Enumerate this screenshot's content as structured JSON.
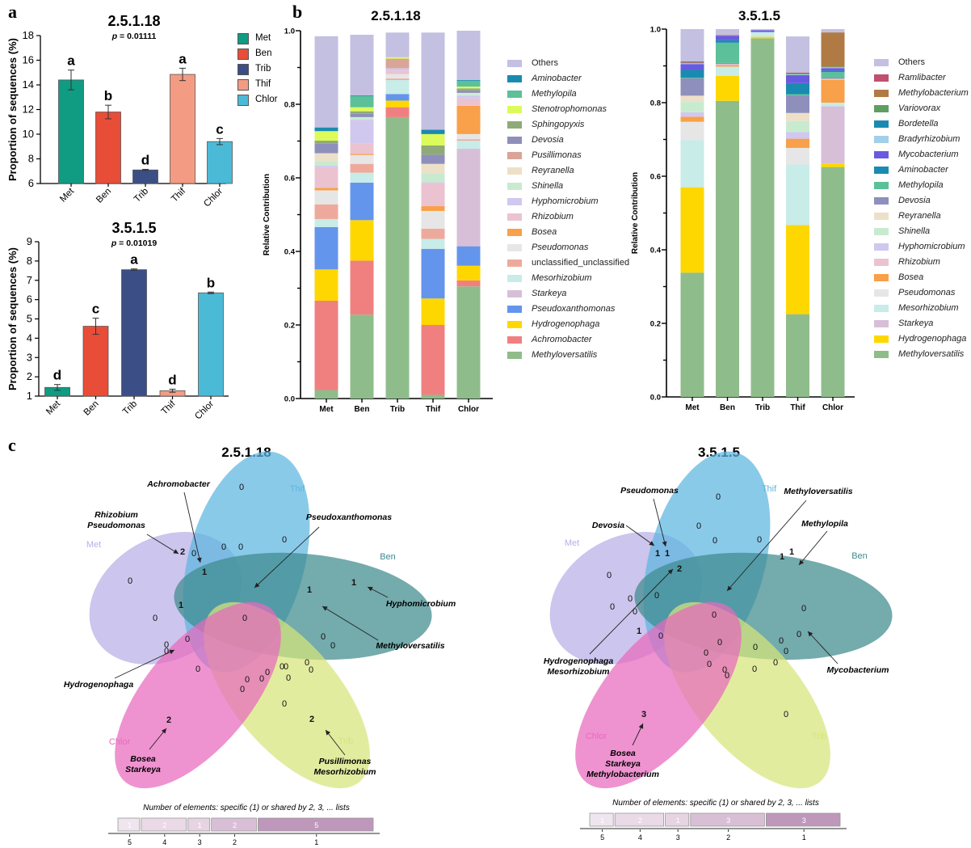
{
  "panels": {
    "a": "a",
    "b": "b",
    "c": "c"
  },
  "chart_data": [
    {
      "id": "a1",
      "type": "bar",
      "title": "2.5.1.18",
      "subtitle": "p = 0.01111",
      "ylabel": "Proportion of sequences (%)",
      "xlabel": "",
      "categories": [
        "Met",
        "Ben",
        "Trib",
        "Thif",
        "Chlor"
      ],
      "values": [
        14.4,
        11.8,
        7.1,
        14.85,
        9.4
      ],
      "errors": [
        0.8,
        0.55,
        0.05,
        0.5,
        0.25
      ],
      "letters": [
        "a",
        "b",
        "d",
        "a",
        "c"
      ],
      "colors": [
        "#0f9c82",
        "#e84d38",
        "#3b4f86",
        "#f39c83",
        "#4bbad6"
      ],
      "ylim": [
        6,
        18
      ],
      "yticks": [
        6,
        8,
        10,
        12,
        14,
        16,
        18
      ],
      "legend": {
        "position": "right",
        "entries": [
          "Met",
          "Ben",
          "Trib",
          "Thif",
          "Chlor"
        ]
      }
    },
    {
      "id": "a2",
      "type": "bar",
      "title": "3.5.1.5",
      "subtitle": "p = 0.01019",
      "ylabel": "Proportion of sequences  (%)",
      "xlabel": "",
      "categories": [
        "Met",
        "Ben",
        "Trib",
        "Thif",
        "Chlor"
      ],
      "values": [
        1.45,
        4.62,
        7.55,
        1.28,
        6.35
      ],
      "errors": [
        0.15,
        0.42,
        0.04,
        0.08,
        0.04
      ],
      "letters": [
        "d",
        "c",
        "a",
        "d",
        "b"
      ],
      "colors": [
        "#0f9c82",
        "#e84d38",
        "#3b4f86",
        "#f39c83",
        "#4bbad6"
      ],
      "ylim": [
        1,
        9
      ],
      "yticks": [
        1,
        2,
        3,
        4,
        5,
        6,
        7,
        8,
        9
      ]
    },
    {
      "id": "b1",
      "type": "bar",
      "stacked": true,
      "title": "2.5.1.18",
      "ylabel": "Relative Contribution",
      "xlabel": "",
      "categories": [
        "Met",
        "Ben",
        "Trib",
        "Thif",
        "Chlor"
      ],
      "ylim": [
        0,
        1
      ],
      "yticks": [
        "0.0",
        "0.2",
        "0.4",
        "0.6",
        "0.8",
        "1.0"
      ],
      "legend": {
        "position": "right"
      },
      "series": [
        {
          "name": "Methyloversatilis",
          "color": "#8fbc8b",
          "values": [
            0.023,
            0.228,
            0.765,
            0.01,
            0.305
          ]
        },
        {
          "name": "Achromobacter",
          "color": "#f08080",
          "values": [
            0.243,
            0.147,
            0.027,
            0.19,
            0.016
          ]
        },
        {
          "name": "Hydrogenophaga",
          "color": "#ffd700",
          "values": [
            0.085,
            0.11,
            0.018,
            0.072,
            0.04
          ]
        },
        {
          "name": "Pseudoxanthomonas",
          "color": "#6495ed",
          "values": [
            0.115,
            0.102,
            0.018,
            0.135,
            0.053
          ]
        },
        {
          "name": "Starkeya",
          "color": "#d8bfd8",
          "values": [
            0,
            0,
            0,
            0,
            0.265
          ]
        },
        {
          "name": "Mesorhizobium",
          "color": "#c8ece8",
          "values": [
            0.022,
            0.027,
            0.038,
            0.027,
            0.022
          ]
        },
        {
          "name": "unclassified_unclassified",
          "color": "#edaa9c",
          "values": [
            0.04,
            0.024,
            0.004,
            0.028,
            0.004
          ]
        },
        {
          "name": "Pseudomonas",
          "color": "#e6e6e6",
          "values": [
            0.038,
            0.024,
            0.012,
            0.048,
            0.014
          ]
        },
        {
          "name": "Bosea",
          "color": "#f8a04a",
          "values": [
            0.007,
            0.003,
            0,
            0.013,
            0.077
          ]
        },
        {
          "name": "Rhizobium",
          "color": "#ebc3d0",
          "values": [
            0.056,
            0.028,
            0.01,
            0.063,
            0.02
          ]
        },
        {
          "name": "Hyphomicrobium",
          "color": "#d0c8ee",
          "values": [
            0.004,
            0.065,
            0.006,
            0.002,
            0.007
          ]
        },
        {
          "name": "Shinella",
          "color": "#c8ebd0",
          "values": [
            0.012,
            0.005,
            0,
            0.025,
            0.005
          ]
        },
        {
          "name": "Reyranella",
          "color": "#ede0c8",
          "values": [
            0.022,
            0.002,
            0,
            0.025,
            0.003
          ]
        },
        {
          "name": "Pusillimonas",
          "color": "#d8a598",
          "values": [
            0,
            0,
            0.026,
            0,
            0
          ]
        },
        {
          "name": "Devosia",
          "color": "#8f8fbc",
          "values": [
            0.026,
            0.009,
            0,
            0.025,
            0.007
          ]
        },
        {
          "name": "Sphingopyxis",
          "color": "#8faa78",
          "values": [
            0.008,
            0.007,
            0,
            0.025,
            0.005
          ]
        },
        {
          "name": "Stenotrophomonas",
          "color": "#dcfa5a",
          "values": [
            0.026,
            0.011,
            0.004,
            0.031,
            0.005
          ]
        },
        {
          "name": "Methylopila",
          "color": "#5cc098",
          "values": [
            0,
            0.03,
            0,
            0,
            0.016
          ]
        },
        {
          "name": "Aminobacter",
          "color": "#1a8bb0",
          "values": [
            0.01,
            0.002,
            0,
            0.012,
            0.002
          ]
        },
        {
          "name": "Others",
          "color": "#c3c0e2",
          "values": [
            0.248,
            0.165,
            0.067,
            0.264,
            0.134
          ]
        }
      ]
    },
    {
      "id": "b2",
      "type": "bar",
      "stacked": true,
      "title": "3.5.1.5",
      "ylabel": "Relative Contribution",
      "xlabel": "",
      "categories": [
        "Met",
        "Ben",
        "Trib",
        "Thif",
        "Chlor"
      ],
      "ylim": [
        0,
        1
      ],
      "yticks": [
        "0.0",
        "0.2",
        "0.4",
        "0.6",
        "0.8",
        "1.0"
      ],
      "legend": {
        "position": "right"
      },
      "series": [
        {
          "name": "Methyloversatilis",
          "color": "#8fbc8b",
          "values": [
            0.338,
            0.805,
            0.975,
            0.225,
            0.625
          ]
        },
        {
          "name": "Hydrogenophaga",
          "color": "#ffd700",
          "values": [
            0.232,
            0.068,
            0.004,
            0.242,
            0.01
          ]
        },
        {
          "name": "Starkeya",
          "color": "#d8bfd8",
          "values": [
            0,
            0,
            0,
            0,
            0.155
          ]
        },
        {
          "name": "Mesorhizobium",
          "color": "#c8ece8",
          "values": [
            0.128,
            0.025,
            0.013,
            0.165,
            0.01
          ]
        },
        {
          "name": "Pseudomonas",
          "color": "#e6e6e6",
          "values": [
            0.05,
            0,
            0,
            0.045,
            0
          ]
        },
        {
          "name": "Bosea",
          "color": "#f8a04a",
          "values": [
            0.014,
            0.004,
            0,
            0.025,
            0.062
          ]
        },
        {
          "name": "Rhizobium",
          "color": "#ebc3d0",
          "values": [
            0,
            0.003,
            0,
            0,
            0.003
          ]
        },
        {
          "name": "Hyphomicrobium",
          "color": "#d0c8ee",
          "values": [
            0.012,
            0,
            0,
            0.018,
            0
          ]
        },
        {
          "name": "Shinella",
          "color": "#c8ebd0",
          "values": [
            0.028,
            0,
            0,
            0.03,
            0
          ]
        },
        {
          "name": "Reyranella",
          "color": "#ede0c8",
          "values": [
            0.017,
            0,
            0,
            0.022,
            0
          ]
        },
        {
          "name": "Devosia",
          "color": "#8f8fbc",
          "values": [
            0.047,
            0.003,
            0,
            0.048,
            0.002
          ]
        },
        {
          "name": "Methylopila",
          "color": "#5cc098",
          "values": [
            0.002,
            0.055,
            0,
            0.003,
            0.016
          ]
        },
        {
          "name": "Aminobacter",
          "color": "#1a8bb0",
          "values": [
            0.021,
            0.007,
            0,
            0.03,
            0.004
          ]
        },
        {
          "name": "Mycobacterium",
          "color": "#6a5ae0",
          "values": [
            0.016,
            0.012,
            0.005,
            0.022,
            0.007
          ]
        },
        {
          "name": "Bradyrhizobium",
          "color": "#a3cfe8",
          "values": [
            0.002,
            0,
            0,
            0.002,
            0.002
          ]
        },
        {
          "name": "Bordetella",
          "color": "#1a8bb0",
          "values": [
            0,
            0,
            0,
            0,
            0
          ]
        },
        {
          "name": "Variovorax",
          "color": "#5f9e5f",
          "values": [
            0.002,
            0,
            0,
            0.003,
            0.002
          ]
        },
        {
          "name": "Methylobacterium",
          "color": "#b07a45",
          "values": [
            0,
            0.002,
            0,
            0,
            0.093
          ]
        },
        {
          "name": "Ramlibacter",
          "color": "#c0506e",
          "values": [
            0.003,
            0,
            0,
            0.002,
            0
          ]
        },
        {
          "name": "Others",
          "color": "#c3c0e2",
          "values": [
            0.088,
            0.016,
            0.003,
            0.098,
            0.009
          ]
        }
      ]
    }
  ],
  "legend_b1": [
    "Others",
    "Aminobacter",
    "Methylopila",
    "Stenotrophomonas",
    "Sphingopyxis",
    "Devosia",
    "Pusillimonas",
    "Reyranella",
    "Shinella",
    "Hyphomicrobium",
    "Rhizobium",
    "Bosea",
    "Pseudomonas",
    "unclassified_unclassified",
    "Mesorhizobium",
    "Starkeya",
    "Pseudoxanthomonas",
    "Hydrogenophaga",
    "Achromobacter",
    "Methyloversatilis"
  ],
  "legend_b2": [
    "Others",
    "Ramlibacter",
    "Methylobacterium",
    "Variovorax",
    "Bordetella",
    "Bradyrhizobium",
    "Mycobacterium",
    "Aminobacter",
    "Methylopila",
    "Devosia",
    "Reyranella",
    "Shinella",
    "Hyphomicrobium",
    "Rhizobium",
    "Bosea",
    "Pseudomonas",
    "Mesorhizobium",
    "Starkeya",
    "Hydrogenophaga",
    "Methyloversatilis"
  ],
  "venn": [
    {
      "title": "2.5.1.18",
      "sets": {
        "Met": "Met",
        "Thif": "Thif",
        "Ben": "Ben",
        "Trib": "Trib",
        "Chlor": "Chlor"
      },
      "set_colors": {
        "Met": "#b9aee6",
        "Thif": "#5db6e0",
        "Ben": "#3f8a8e",
        "Trib": "#d7e47a",
        "Chlor": "#e869be"
      },
      "counts": [
        "2",
        "0",
        "1",
        "0",
        "0",
        "0",
        "0",
        "0",
        "1",
        "0",
        "1",
        "1",
        "0",
        "0",
        "0",
        "0",
        "0",
        "0",
        "0",
        "0",
        "0",
        "0",
        "0",
        "0",
        "0",
        "0",
        "0",
        "0",
        "0",
        "2",
        "2"
      ],
      "annotations": [
        {
          "label": "Achromobacter"
        },
        {
          "label": "Rhizobium\nPseudomonas"
        },
        {
          "label": "Pseudoxanthomonas"
        },
        {
          "label": "Hyphomicrobium"
        },
        {
          "label": "Methyloversatilis"
        },
        {
          "label": "Hydrogenophaga"
        },
        {
          "label": "Bosea\nStarkeya"
        },
        {
          "label": "Pusillimonas\nMesorhizobium"
        }
      ],
      "summary_title": "Number of elements: specific (1) or shared by 2, 3, ... lists",
      "summary_bar": [
        {
          "shared_by": "5",
          "count": "1"
        },
        {
          "shared_by": "4",
          "count": "2"
        },
        {
          "shared_by": "3",
          "count": "1"
        },
        {
          "shared_by": "2",
          "count": "2"
        },
        {
          "shared_by": "1",
          "count": "5"
        }
      ]
    },
    {
      "title": "3.5.1.5",
      "sets": {
        "Met": "Met",
        "Thif": "Thif",
        "Ben": "Ben",
        "Trib": "Trib",
        "Chlor": "Chlor"
      },
      "counts": [
        "1",
        "1",
        "2",
        "0",
        "0",
        "0",
        "0",
        "0",
        "1",
        "0",
        "1",
        "0",
        "0",
        "0",
        "0",
        "1",
        "0",
        "0",
        "0",
        "0",
        "0",
        "0",
        "0",
        "0",
        "0",
        "0",
        "0",
        "0",
        "0",
        "3",
        "0"
      ],
      "annotations": [
        {
          "label": "Pseudomonas"
        },
        {
          "label": "Devosia"
        },
        {
          "label": "Methyloversatilis"
        },
        {
          "label": "Methylopila"
        },
        {
          "label": "Mycobacterium"
        },
        {
          "label": "Hydrogenophaga\nMesorhizobium"
        },
        {
          "label": "Bosea\nStarkeya\nMethylobacterium"
        }
      ],
      "summary_title": "Number of elements: specific (1) or shared by 2, 3, ... lists",
      "summary_bar": [
        {
          "shared_by": "5",
          "count": "1"
        },
        {
          "shared_by": "4",
          "count": "2"
        },
        {
          "shared_by": "3",
          "count": "1"
        },
        {
          "shared_by": "2",
          "count": "3"
        },
        {
          "shared_by": "1",
          "count": "3"
        }
      ]
    }
  ]
}
